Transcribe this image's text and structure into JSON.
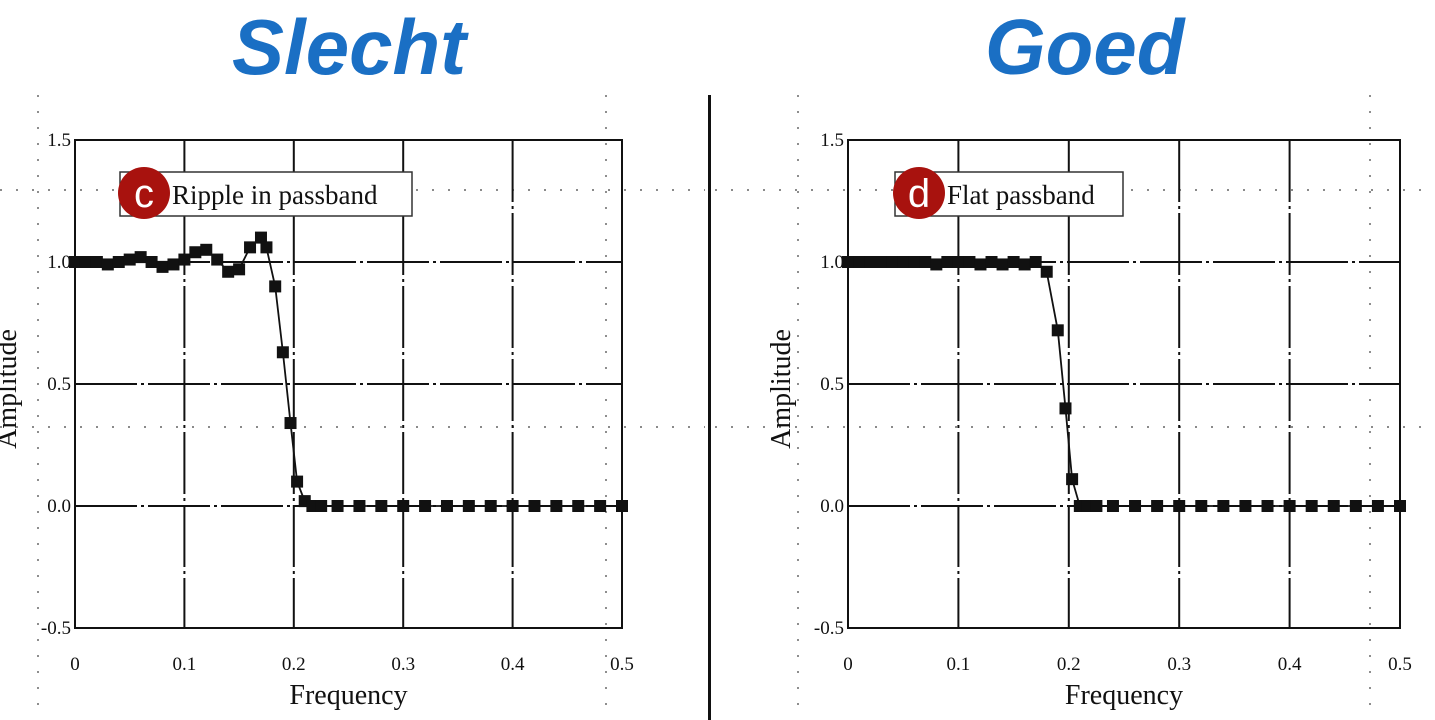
{
  "headings": {
    "left": "Slecht",
    "right": "Goed"
  },
  "colors": {
    "heading": "#1a6fc4",
    "badge": "#a8120e",
    "marker": "#111111"
  },
  "chart_data": [
    {
      "type": "line",
      "xlabel": "Frequency",
      "ylabel": "Amplitude",
      "xlim": [
        0,
        0.5
      ],
      "ylim": [
        -0.5,
        1.5
      ],
      "xticks": [
        0,
        0.1,
        0.2,
        0.3,
        0.4,
        0.5
      ],
      "xtick_labels": [
        "0",
        "0.1",
        "0.2",
        "0.3",
        "0.4",
        "0.5"
      ],
      "yticks": [
        -0.5,
        0.0,
        0.5,
        1.0,
        1.5
      ],
      "ytick_labels": [
        "-0.5",
        "0.0",
        "0.5",
        "1.0",
        "1.5"
      ],
      "grid": true,
      "legend": {
        "text": "Ripple in passband",
        "badge": "c",
        "position": "top-left"
      },
      "x": [
        0,
        0.01,
        0.02,
        0.03,
        0.04,
        0.05,
        0.06,
        0.07,
        0.08,
        0.09,
        0.1,
        0.11,
        0.12,
        0.13,
        0.14,
        0.15,
        0.16,
        0.17,
        0.175,
        0.183,
        0.19,
        0.197,
        0.203,
        0.21,
        0.217,
        0.225,
        0.24,
        0.26,
        0.28,
        0.3,
        0.32,
        0.34,
        0.36,
        0.38,
        0.4,
        0.42,
        0.44,
        0.46,
        0.48,
        0.5
      ],
      "y": [
        1.0,
        1.0,
        1.0,
        0.99,
        1.0,
        1.01,
        1.02,
        1.0,
        0.98,
        0.99,
        1.01,
        1.04,
        1.05,
        1.01,
        0.96,
        0.97,
        1.06,
        1.1,
        1.06,
        0.9,
        0.63,
        0.34,
        0.1,
        0.02,
        0.0,
        0.0,
        0.0,
        0.0,
        0.0,
        0.0,
        0.0,
        0.0,
        0.0,
        0.0,
        0.0,
        0.0,
        0.0,
        0.0,
        0.0,
        0.0
      ]
    },
    {
      "type": "line",
      "xlabel": "Frequency",
      "ylabel": "Amplitude",
      "xlim": [
        0,
        0.5
      ],
      "ylim": [
        -0.5,
        1.5
      ],
      "xticks": [
        0,
        0.1,
        0.2,
        0.3,
        0.4,
        0.5
      ],
      "xtick_labels": [
        "0",
        "0.1",
        "0.2",
        "0.3",
        "0.4",
        "0.5"
      ],
      "yticks": [
        -0.5,
        0.0,
        0.5,
        1.0,
        1.5
      ],
      "ytick_labels": [
        "-0.5",
        "0.0",
        "0.5",
        "1.0",
        "1.5"
      ],
      "grid": true,
      "legend": {
        "text": "Flat passband",
        "badge": "d",
        "position": "top-left"
      },
      "x": [
        0,
        0.01,
        0.02,
        0.03,
        0.04,
        0.05,
        0.06,
        0.07,
        0.08,
        0.09,
        0.1,
        0.11,
        0.12,
        0.13,
        0.14,
        0.15,
        0.16,
        0.17,
        0.18,
        0.19,
        0.197,
        0.203,
        0.21,
        0.217,
        0.225,
        0.24,
        0.26,
        0.28,
        0.3,
        0.32,
        0.34,
        0.36,
        0.38,
        0.4,
        0.42,
        0.44,
        0.46,
        0.48,
        0.5
      ],
      "y": [
        1.0,
        1.0,
        1.0,
        1.0,
        1.0,
        1.0,
        1.0,
        1.0,
        0.99,
        1.0,
        1.0,
        1.0,
        0.99,
        1.0,
        0.99,
        1.0,
        0.99,
        1.0,
        0.96,
        0.72,
        0.4,
        0.11,
        0.0,
        0.0,
        0.0,
        0.0,
        0.0,
        0.0,
        0.0,
        0.0,
        0.0,
        0.0,
        0.0,
        0.0,
        0.0,
        0.0,
        0.0,
        0.0,
        0.0
      ]
    }
  ]
}
